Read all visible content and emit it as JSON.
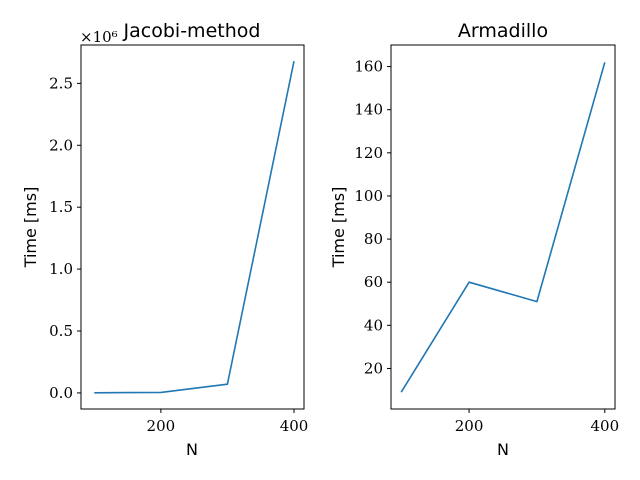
{
  "chart_data": [
    {
      "type": "line",
      "title": "Jacobi-method",
      "xlabel": "N",
      "ylabel": "Time [ms]",
      "y_offset_text": "×10⁶",
      "x": [
        100,
        200,
        300,
        400
      ],
      "values": [
        0.0008,
        0.004,
        0.07,
        2.68
      ],
      "xlim": [
        80,
        415
      ],
      "ylim": [
        -0.13,
        2.81
      ],
      "xticks": [
        200,
        400
      ],
      "xtick_labels": [
        "200",
        "400"
      ],
      "yticks": [
        0.0,
        0.5,
        1.0,
        1.5,
        2.0,
        2.5
      ],
      "ytick_labels": [
        "0.0",
        "0.5",
        "1.0",
        "1.5",
        "2.0",
        "2.5"
      ],
      "color": "#1f77b4",
      "grid": false
    },
    {
      "type": "line",
      "title": "Armadillo",
      "xlabel": "N",
      "ylabel": "Time [ms]",
      "x": [
        100,
        200,
        300,
        400
      ],
      "values": [
        9,
        60,
        51,
        162
      ],
      "xlim": [
        85,
        415
      ],
      "ylim": [
        1.2,
        170
      ],
      "xticks": [
        200,
        400
      ],
      "xtick_labels": [
        "200",
        "400"
      ],
      "yticks": [
        20,
        40,
        60,
        80,
        100,
        120,
        140,
        160
      ],
      "ytick_labels": [
        "20",
        "40",
        "60",
        "80",
        "100",
        "120",
        "140",
        "160"
      ],
      "color": "#1f77b4",
      "grid": false
    }
  ]
}
